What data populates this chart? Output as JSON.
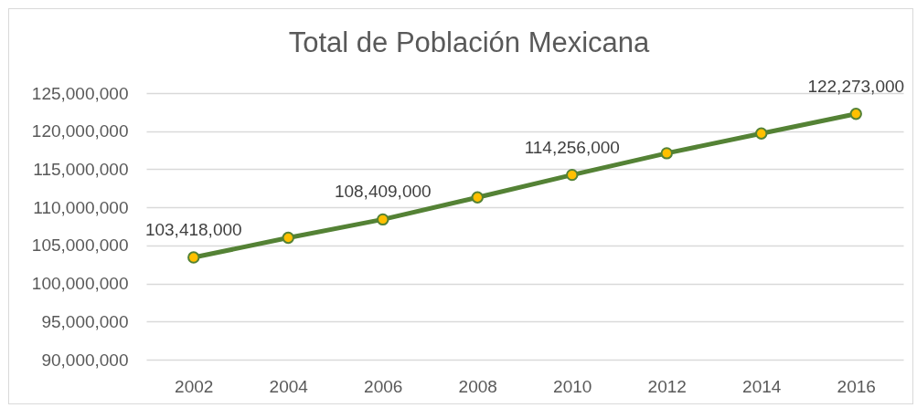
{
  "chart_data": {
    "type": "line",
    "title": "Total de Población Mexicana",
    "categories": [
      "2002",
      "2004",
      "2006",
      "2008",
      "2010",
      "2012",
      "2014",
      "2016"
    ],
    "values": [
      103418000,
      106000000,
      108409000,
      111300000,
      114256000,
      117100000,
      119700000,
      122273000
    ],
    "value_labels": [
      "103,418,000",
      null,
      "108,409,000",
      null,
      "114,256,000",
      null,
      null,
      "122,273,000"
    ],
    "color": "#548235",
    "colors": [
      "#ffc000",
      "#ffc000",
      "#ffc000",
      "#ffc000",
      "#ffc000",
      "#ffc000",
      "#ffc000",
      "#ffc000"
    ],
    "ylim": [
      90000000,
      125000000
    ],
    "yticks": [
      {
        "value": 90000000,
        "label": "90,000,000"
      },
      {
        "value": 95000000,
        "label": "95,000,000"
      },
      {
        "value": 100000000,
        "label": "100,000,000"
      },
      {
        "value": 105000000,
        "label": "105,000,000"
      },
      {
        "value": 110000000,
        "label": "110,000,000"
      },
      {
        "value": 115000000,
        "label": "115,000,000"
      },
      {
        "value": 120000000,
        "label": "120,000,000"
      },
      {
        "value": 125000000,
        "label": "125,000,000"
      }
    ],
    "grid": "y",
    "marker": "circle",
    "line_style": "solid"
  }
}
